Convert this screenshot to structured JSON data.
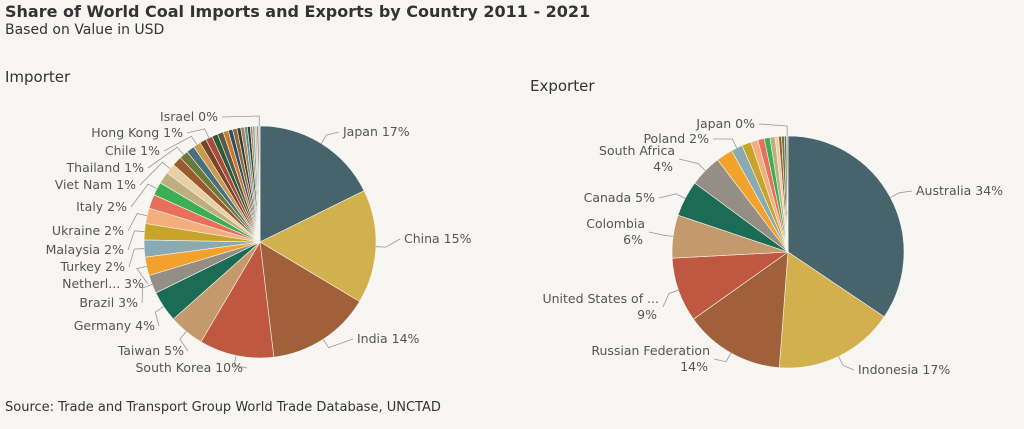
{
  "title": "Share of World Coal Imports and Exports by Country 2011 - 2021",
  "subtitle": "Based on Value in USD",
  "source": "Source: Trade and Transport Group World Trade Database, UNCTAD",
  "chart_data": [
    {
      "type": "pie",
      "title": "Importer",
      "slices": [
        {
          "label": "Japan 17%",
          "value": 17.2,
          "color": "#47646c"
        },
        {
          "label": "China 15%",
          "value": 15.4,
          "color": "#d1b04d"
        },
        {
          "label": "India 14%",
          "value": 14.1,
          "color": "#a0603a"
        },
        {
          "label": "South Korea 10%",
          "value": 10.1,
          "color": "#c05740"
        },
        {
          "label": "Taiwan 5%",
          "value": 4.8,
          "color": "#c49a6c"
        },
        {
          "label": "Germany 4%",
          "value": 4.2,
          "color": "#1b6b55"
        },
        {
          "label": "Brazil 3%",
          "value": 2.5,
          "color": "#948e84"
        },
        {
          "label": "Netherl... 3%",
          "value": 2.5,
          "color": "#f2a22c"
        },
        {
          "label": "Turkey 2%",
          "value": 2.3,
          "color": "#8aaab1"
        },
        {
          "label": "Malaysia 2%",
          "value": 2.2,
          "color": "#c9a42a"
        },
        {
          "label": "Ukraine 2%",
          "value": 2.1,
          "color": "#f4ae7d"
        },
        {
          "label": "",
          "value": 1.9,
          "color": "#e8705a"
        },
        {
          "label": "Italy 2%",
          "value": 1.8,
          "color": "#3cae54"
        },
        {
          "label": "",
          "value": 1.6,
          "color": "#bfae7f"
        },
        {
          "label": "Viet Nam 1%",
          "value": 1.4,
          "color": "#e9cfa4"
        },
        {
          "label": "",
          "value": 1.3,
          "color": "#9a5a2b"
        },
        {
          "label": "Thailand 1%",
          "value": 1.2,
          "color": "#6b7a3a"
        },
        {
          "label": "",
          "value": 1.1,
          "color": "#48707c"
        },
        {
          "label": "Chile 1%",
          "value": 1.0,
          "color": "#c99a4e"
        },
        {
          "label": "",
          "value": 0.9,
          "color": "#7a4426"
        },
        {
          "label": "Hong Kong 1%",
          "value": 0.9,
          "color": "#a84b3a"
        },
        {
          "label": "",
          "value": 0.8,
          "color": "#2f5a38"
        },
        {
          "label": "",
          "value": 0.8,
          "color": "#5a5a48"
        },
        {
          "label": "",
          "value": 0.7,
          "color": "#c97a2a"
        },
        {
          "label": "",
          "value": 0.6,
          "color": "#2f4d66"
        },
        {
          "label": "",
          "value": 0.6,
          "color": "#8a6b3a"
        },
        {
          "label": "",
          "value": 0.5,
          "color": "#3f3a2a"
        },
        {
          "label": "",
          "value": 0.5,
          "color": "#9a8a6a"
        },
        {
          "label": "",
          "value": 0.4,
          "color": "#6a8a8a"
        },
        {
          "label": "",
          "value": 0.4,
          "color": "#2a4a3a"
        },
        {
          "label": "",
          "value": 0.3,
          "color": "#b08a4a"
        },
        {
          "label": "",
          "value": 0.3,
          "color": "#8aa0b8"
        },
        {
          "label": "",
          "value": 0.3,
          "color": "#d8c8a8"
        },
        {
          "label": "",
          "value": 0.2,
          "color": "#5a4a3a"
        },
        {
          "label": "Israel 0%",
          "value": 0.2,
          "color": "#c8d0d8"
        }
      ]
    },
    {
      "type": "pie",
      "title": "Exporter",
      "slices": [
        {
          "label": "Australia 34%",
          "value": 34.5,
          "color": "#47646c"
        },
        {
          "label": "Indonesia 17%",
          "value": 16.8,
          "color": "#d1b04d"
        },
        {
          "label": "Russian Federation 14%",
          "value": 14.0,
          "color": "#a0603a"
        },
        {
          "label": "United States of ... 9%",
          "value": 9.0,
          "color": "#c05740"
        },
        {
          "label": "Colombia 6%",
          "value": 6.0,
          "color": "#c49a6c"
        },
        {
          "label": "Canada 5%",
          "value": 5.0,
          "color": "#1b6b55"
        },
        {
          "label": "South Africa 4%",
          "value": 4.5,
          "color": "#948e84"
        },
        {
          "label": "",
          "value": 2.3,
          "color": "#f2a22c"
        },
        {
          "label": "Poland 2%",
          "value": 1.6,
          "color": "#8aaab1"
        },
        {
          "label": "",
          "value": 1.3,
          "color": "#c9a42a"
        },
        {
          "label": "",
          "value": 1.0,
          "color": "#f4ae7d"
        },
        {
          "label": "",
          "value": 0.9,
          "color": "#e8705a"
        },
        {
          "label": "",
          "value": 0.8,
          "color": "#3cae54"
        },
        {
          "label": "",
          "value": 0.7,
          "color": "#bfae7f"
        },
        {
          "label": "",
          "value": 0.5,
          "color": "#e9cfa4"
        },
        {
          "label": "",
          "value": 0.4,
          "color": "#9a5a2b"
        },
        {
          "label": "",
          "value": 0.4,
          "color": "#6b7a3a"
        },
        {
          "label": "",
          "value": 0.3,
          "color": "#48707c"
        },
        {
          "label": "Japan 0%",
          "value": 0.2,
          "color": "#c99a4e"
        }
      ]
    }
  ]
}
